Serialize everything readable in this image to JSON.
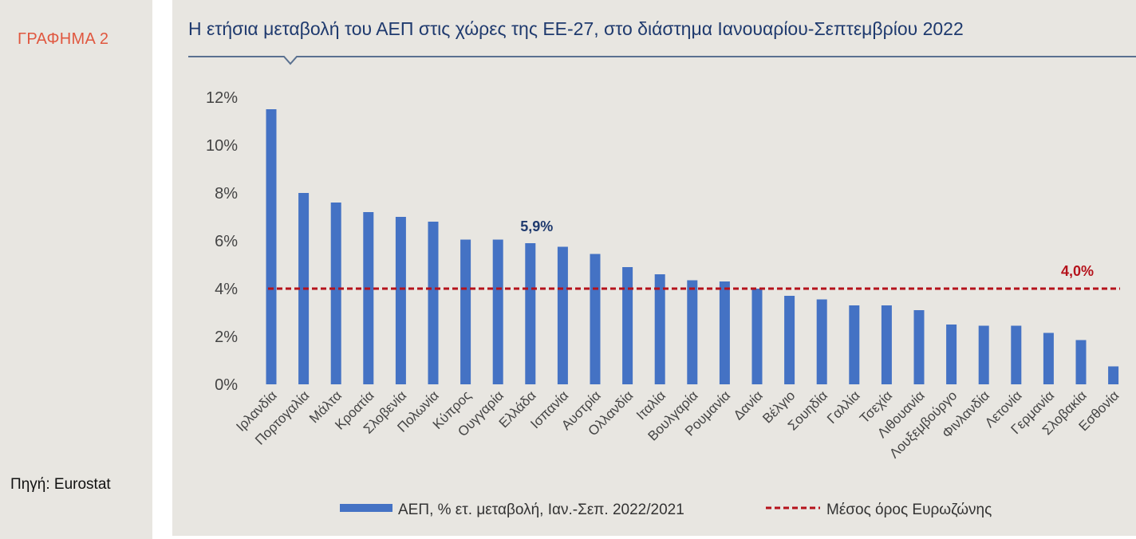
{
  "sidebar": {
    "graph_label": "ΓΡΑΦΗΜΑ 2",
    "source": "Πηγή: Eurostat"
  },
  "colors": {
    "bar": "#4472c4",
    "average_line": "#b5121b",
    "title": "#1f3a6e",
    "graph_label": "#e0573f",
    "background": "#e8e6e1"
  },
  "chart_data": {
    "type": "bar",
    "title": "Η ετήσια μεταβολή του ΑΕΠ στις χώρες της ΕΕ-27, στο διάστημα Ιανουαρίου-Σεπτεμβρίου 2022",
    "categories": [
      "Ιρλανδία",
      "Πορτογαλία",
      "Μάλτα",
      "Κροατία",
      "Σλοβενία",
      "Πολωνία",
      "Κύπρος",
      "Ουγγαρία",
      "Ελλάδα",
      "Ισπανία",
      "Αυστρία",
      "Ολλανδία",
      "Ιταλία",
      "Βουλγαρία",
      "Ρουμανία",
      "Δανία",
      "Βέλγιο",
      "Σουηδία",
      "Γαλλία",
      "Τσεχία",
      "Λιθουανία",
      "Λουξεμβούργο",
      "Φινλανδία",
      "Λετονία",
      "Γερμανία",
      "Σλοβακία",
      "Εσθονία"
    ],
    "series": [
      {
        "name": "ΑΕΠ, % ετ. μεταβολή, Ιαν.-Σεπ. 2022/2021",
        "values": [
          11.5,
          8.0,
          7.6,
          7.2,
          7.0,
          6.8,
          6.05,
          6.05,
          5.9,
          5.75,
          5.45,
          4.9,
          4.6,
          4.35,
          4.3,
          4.0,
          3.7,
          3.55,
          3.3,
          3.3,
          3.1,
          2.5,
          2.45,
          2.45,
          2.15,
          1.85,
          0.75
        ]
      }
    ],
    "reference_line": {
      "name": "Μέσος όρος Ευρωζώνης",
      "value": 4.0,
      "label": "4,0%"
    },
    "annotation": {
      "category": "Ελλάδα",
      "label": "5,9%"
    },
    "y_ticks": [
      {
        "value": 0,
        "label": "0%"
      },
      {
        "value": 2,
        "label": "2%"
      },
      {
        "value": 4,
        "label": "4%"
      },
      {
        "value": 6,
        "label": "6%"
      },
      {
        "value": 8,
        "label": "8%"
      },
      {
        "value": 10,
        "label": "10%"
      },
      {
        "value": 12,
        "label": "12%"
      }
    ],
    "ylim": [
      0,
      12
    ],
    "grid": false,
    "legend_position": "bottom"
  }
}
